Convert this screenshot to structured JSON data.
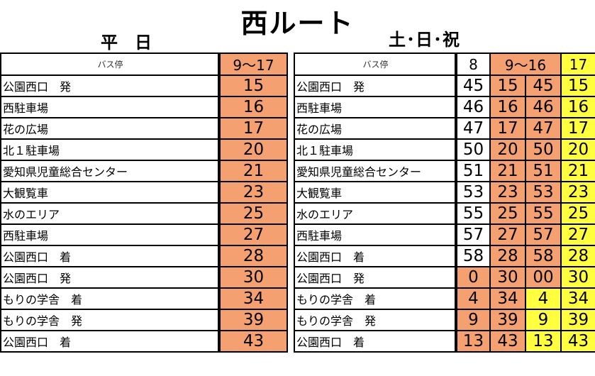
{
  "title": "西ルート",
  "weekday": {
    "label": "平日",
    "stop_header": "バス停",
    "time_header": "9～17",
    "rows": [
      {
        "stop": "公園西口　発",
        "min": "15"
      },
      {
        "stop": "西駐車場",
        "min": "16"
      },
      {
        "stop": "花の広場",
        "min": "17"
      },
      {
        "stop": "北１駐車場",
        "min": "20"
      },
      {
        "stop": "愛知県児童総合センター",
        "min": "21"
      },
      {
        "stop": "大観覧車",
        "min": "23"
      },
      {
        "stop": "水のエリア",
        "min": "25"
      },
      {
        "stop": "西駐車場",
        "min": "27"
      },
      {
        "stop": "公園西口　着",
        "min": "28"
      },
      {
        "stop": "公園西口　発",
        "min": "30"
      },
      {
        "stop": "もりの学舎　着",
        "min": "34"
      },
      {
        "stop": "もりの学舎　発",
        "min": "39"
      },
      {
        "stop": "公園西口　着",
        "min": "43"
      }
    ]
  },
  "holiday": {
    "label": "土･日･祝",
    "stop_header": "バス停",
    "hour_headers": [
      "8",
      "9～16",
      "17"
    ],
    "rows": [
      {
        "stop": "公園西口　発",
        "c": [
          "45",
          "15",
          "45",
          "15"
        ]
      },
      {
        "stop": "西駐車場",
        "c": [
          "46",
          "16",
          "46",
          "16"
        ]
      },
      {
        "stop": "花の広場",
        "c": [
          "47",
          "17",
          "47",
          "17"
        ]
      },
      {
        "stop": "北１駐車場",
        "c": [
          "50",
          "20",
          "50",
          "20"
        ]
      },
      {
        "stop": "愛知県児童総合センター",
        "c": [
          "51",
          "21",
          "51",
          "21"
        ]
      },
      {
        "stop": "大観覧車",
        "c": [
          "53",
          "23",
          "53",
          "23"
        ]
      },
      {
        "stop": "水のエリア",
        "c": [
          "55",
          "25",
          "55",
          "25"
        ]
      },
      {
        "stop": "西駐車場",
        "c": [
          "57",
          "27",
          "57",
          "27"
        ]
      },
      {
        "stop": "公園西口　着",
        "c": [
          "58",
          "28",
          "58",
          "28"
        ]
      },
      {
        "stop": "公園西口　発",
        "c": [
          "0",
          "30",
          "00",
          "30"
        ]
      },
      {
        "stop": "もりの学舎　着",
        "c": [
          "4",
          "34",
          "4",
          "34"
        ]
      },
      {
        "stop": "もりの学舎　発",
        "c": [
          "9",
          "39",
          "9",
          "39"
        ]
      },
      {
        "stop": "公園西口　着",
        "c": [
          "13",
          "43",
          "13",
          "43"
        ]
      }
    ],
    "colors": {
      "orange": "#f4a070",
      "yellow": "#ffff40",
      "white": "#ffffff"
    }
  }
}
